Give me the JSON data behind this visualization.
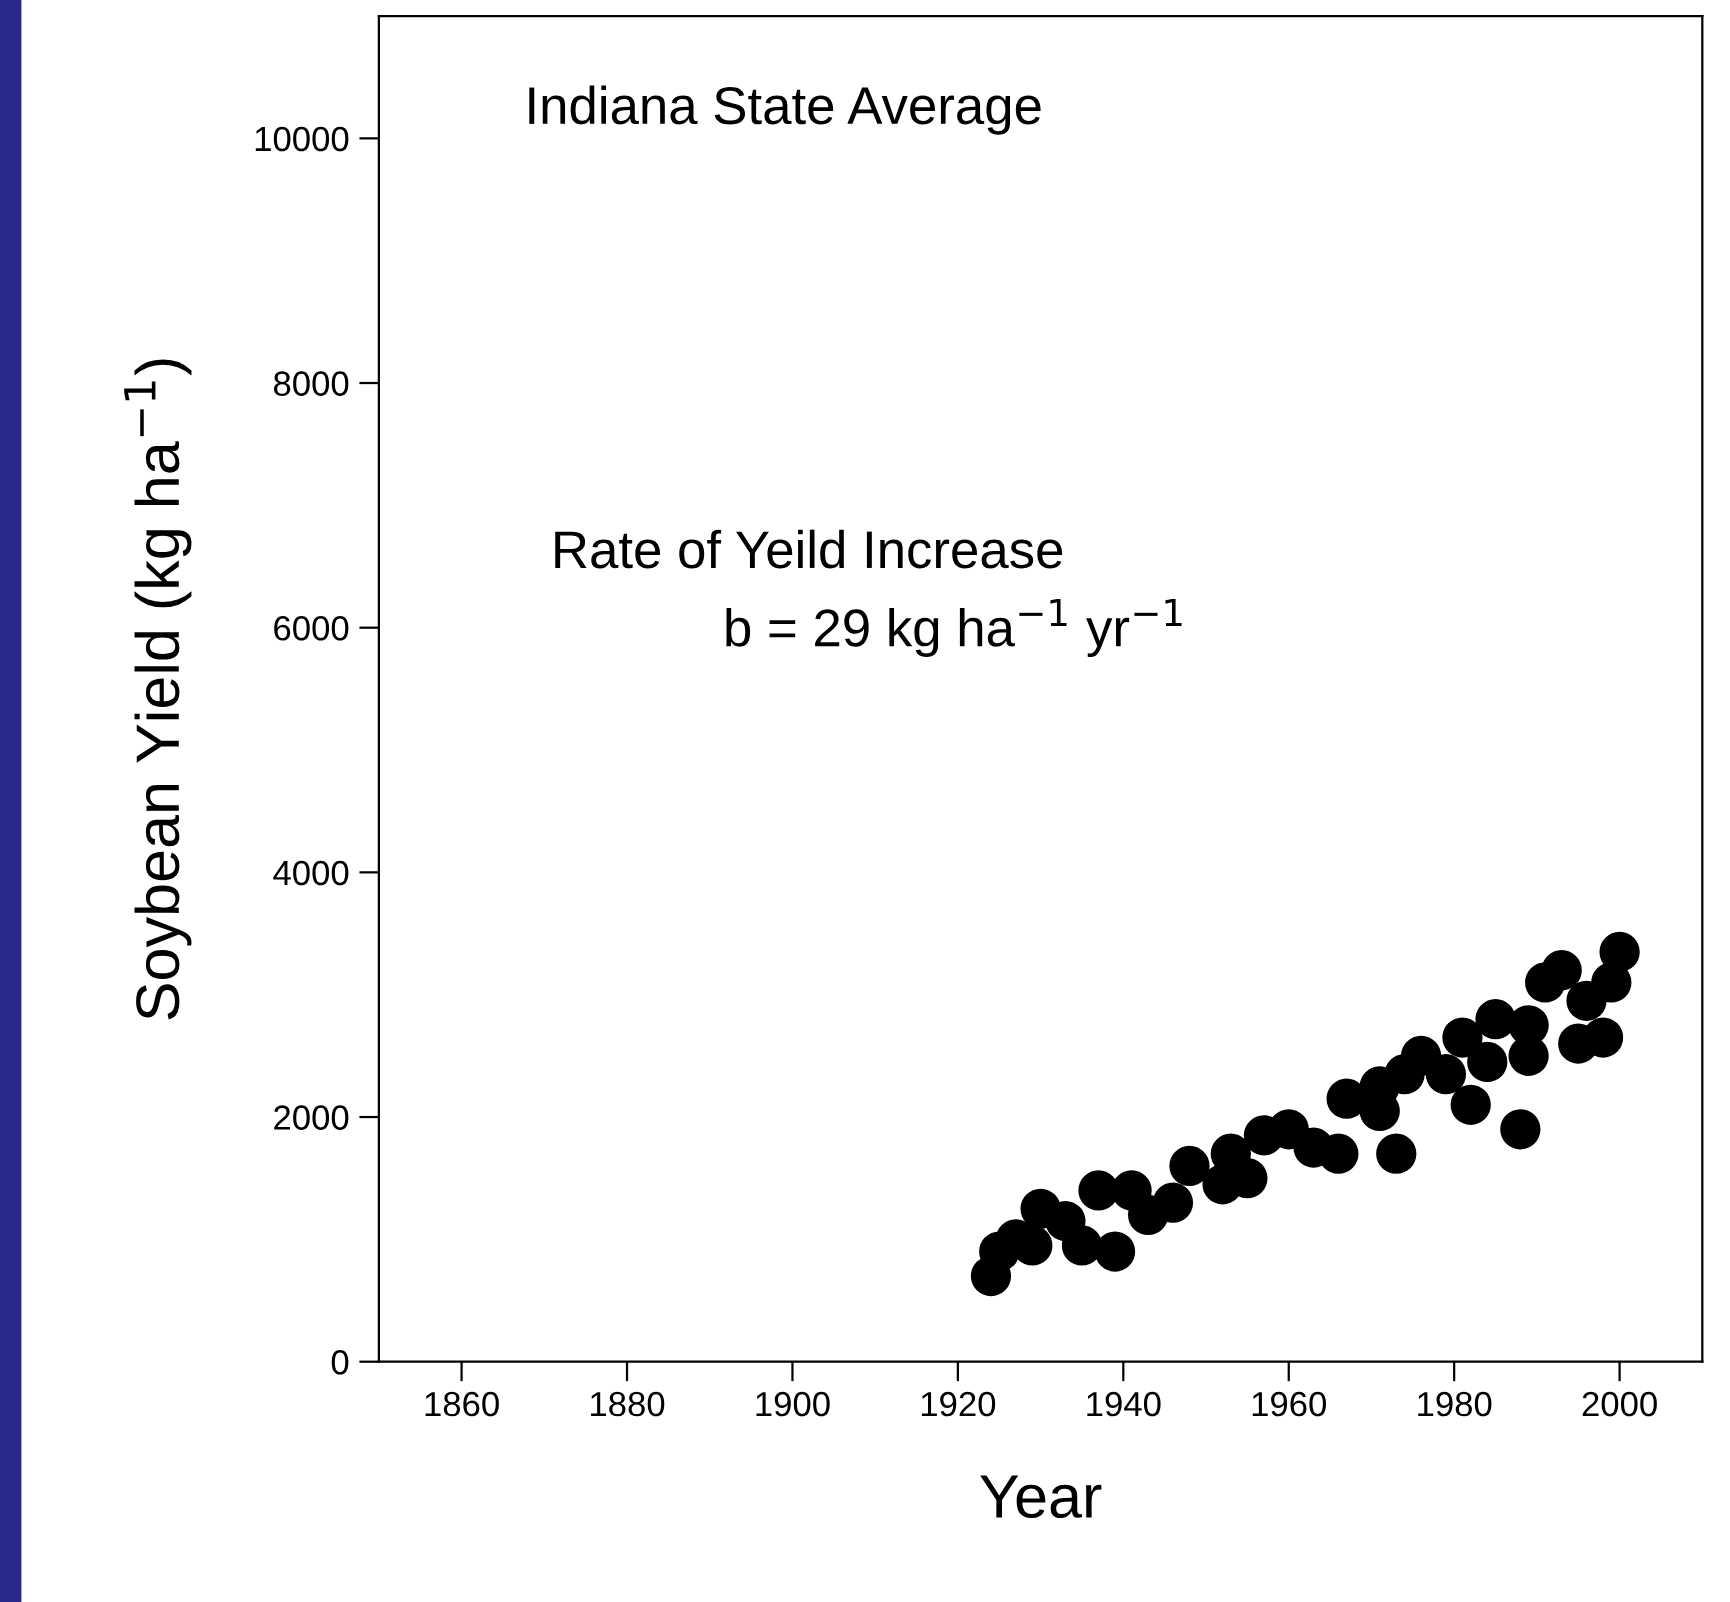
{
  "chart_data": {
    "type": "scatter",
    "xlabel": "Year",
    "ylabel": "Soybean Yield (kg ha$^{−1}$)",
    "annotations": [
      "Indiana State Average",
      "Rate of Yeild Increase",
      "b = 29 kg ha$^{−1}$ yr$^{−1}$"
    ],
    "x": [
      1924,
      1925,
      1927,
      1929,
      1930,
      1933,
      1935,
      1937,
      1939,
      1941,
      1943,
      1946,
      1948,
      1952,
      1953,
      1955,
      1957,
      1960,
      1963,
      1966,
      1967,
      1971,
      1971,
      1973,
      1974,
      1976,
      1979,
      1981,
      1982,
      1984,
      1985,
      1988,
      1989,
      1989,
      1991,
      1993,
      1995,
      1996,
      1998,
      1999,
      2000
    ],
    "series": [
      {
        "color": "#000000",
        "values": [
          700,
          900,
          1000,
          950,
          1250,
          1150,
          950,
          1400,
          900,
          1400,
          1200,
          1300,
          1600,
          1450,
          1700,
          1500,
          1850,
          1900,
          1750,
          1700,
          2150,
          2250,
          2050,
          1700,
          2350,
          2500,
          2350,
          2650,
          2100,
          2450,
          2800,
          1900,
          2500,
          2750,
          3100,
          3200,
          2600,
          2950,
          2650,
          3100,
          3350
        ]
      }
    ],
    "xlim": [
      1850,
      2010
    ],
    "xticks": [
      1860,
      1880,
      1900,
      1920,
      1940,
      1960,
      1980,
      2000
    ],
    "ylim": [
      0,
      11000
    ],
    "yticks": [
      0,
      2000,
      4000,
      6000,
      8000,
      10000
    ],
    "grid": false,
    "legend": false,
    "marker": "circle"
  }
}
